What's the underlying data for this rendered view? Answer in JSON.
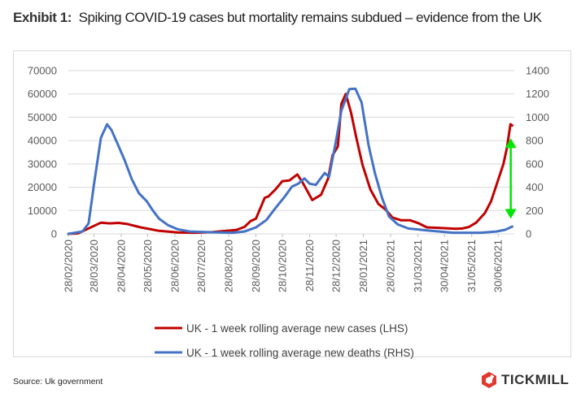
{
  "title": {
    "label": "Exhibit 1:",
    "text": "Spiking COVID-19 cases but mortality remains subdued – evidence from the UK"
  },
  "source": "Source: Uk government",
  "logo": {
    "text": "TICKMILL",
    "color": "#e03a2e"
  },
  "chart_data": {
    "type": "line",
    "title": "Spiking COVID-19 cases but mortality remains subdued – evidence from the UK",
    "xlabel": "",
    "ylabel": "",
    "grid": true,
    "legend_position": "bottom",
    "x_tick_labels": [
      "28/02/2020",
      "28/03/2020",
      "28/04/2020",
      "28/05/2020",
      "28/06/2020",
      "28/07/2020",
      "28/08/2020",
      "28/09/2020",
      "28/10/2020",
      "28/11/2020",
      "28/12/2020",
      "28/01/2021",
      "28/02/2021",
      "31/03/2021",
      "30/04/2021",
      "31/05/2021",
      "30/06/2021"
    ],
    "x_range": [
      "2020-02-28",
      "2021-07-22"
    ],
    "y_left": {
      "range": [
        0,
        70000
      ],
      "ticks": [
        "0",
        "10000",
        "20000",
        "30000",
        "40000",
        "50000",
        "60000",
        "70000"
      ]
    },
    "y_right": {
      "range": [
        0,
        1400
      ],
      "ticks": [
        "0",
        "200",
        "400",
        "600",
        "800",
        "1000",
        "1200",
        "1400"
      ]
    },
    "series": [
      {
        "name": "UK - 1 week rolling average new cases (LHS)",
        "axis": "left",
        "color": "#c00000",
        "points": [
          [
            "2020-02-28",
            0
          ],
          [
            "2020-03-10",
            200
          ],
          [
            "2020-03-20",
            2000
          ],
          [
            "2020-04-05",
            4800
          ],
          [
            "2020-04-15",
            4500
          ],
          [
            "2020-04-25",
            4700
          ],
          [
            "2020-05-05",
            4200
          ],
          [
            "2020-05-20",
            2800
          ],
          [
            "2020-06-10",
            1300
          ],
          [
            "2020-07-01",
            600
          ],
          [
            "2020-07-20",
            500
          ],
          [
            "2020-08-10",
            800
          ],
          [
            "2020-09-06",
            1700
          ],
          [
            "2020-09-15",
            3000
          ],
          [
            "2020-09-22",
            5500
          ],
          [
            "2020-09-28",
            6500
          ],
          [
            "2020-10-08",
            15500
          ],
          [
            "2020-10-12",
            16000
          ],
          [
            "2020-10-20",
            19000
          ],
          [
            "2020-10-28",
            22600
          ],
          [
            "2020-11-05",
            22900
          ],
          [
            "2020-11-14",
            25500
          ],
          [
            "2020-11-20",
            22000
          ],
          [
            "2020-12-01",
            14500
          ],
          [
            "2020-12-11",
            16800
          ],
          [
            "2020-12-19",
            23800
          ],
          [
            "2020-12-24",
            33700
          ],
          [
            "2020-12-30",
            37500
          ],
          [
            "2021-01-03",
            55700
          ],
          [
            "2021-01-08",
            60000
          ],
          [
            "2021-01-14",
            52000
          ],
          [
            "2021-01-20",
            41200
          ],
          [
            "2021-01-27",
            29600
          ],
          [
            "2021-02-05",
            19000
          ],
          [
            "2021-02-14",
            12800
          ],
          [
            "2021-02-22",
            10500
          ],
          [
            "2021-03-02",
            7000
          ],
          [
            "2021-03-12",
            5800
          ],
          [
            "2021-03-22",
            5800
          ],
          [
            "2021-04-01",
            4500
          ],
          [
            "2021-04-10",
            2800
          ],
          [
            "2021-04-25",
            2500
          ],
          [
            "2021-05-13",
            2200
          ],
          [
            "2021-05-20",
            2300
          ],
          [
            "2021-05-28",
            3000
          ],
          [
            "2021-06-05",
            4800
          ],
          [
            "2021-06-15",
            9000
          ],
          [
            "2021-06-22",
            14000
          ],
          [
            "2021-06-29",
            22000
          ],
          [
            "2021-07-06",
            30000
          ],
          [
            "2021-07-10",
            37000
          ],
          [
            "2021-07-14",
            47000
          ],
          [
            "2021-07-16",
            46500
          ]
        ]
      },
      {
        "name": "UK - 1 week rolling average new deaths (RHS)",
        "axis": "right",
        "color": "#4472c4",
        "points": [
          [
            "2020-02-28",
            0
          ],
          [
            "2020-03-15",
            20
          ],
          [
            "2020-03-22",
            90
          ],
          [
            "2020-03-28",
            420
          ],
          [
            "2020-04-05",
            824
          ],
          [
            "2020-04-12",
            940
          ],
          [
            "2020-04-17",
            890
          ],
          [
            "2020-04-24",
            770
          ],
          [
            "2020-05-02",
            630
          ],
          [
            "2020-05-10",
            470
          ],
          [
            "2020-05-18",
            350
          ],
          [
            "2020-05-27",
            280
          ],
          [
            "2020-06-03",
            200
          ],
          [
            "2020-06-10",
            130
          ],
          [
            "2020-06-20",
            75
          ],
          [
            "2020-07-01",
            40
          ],
          [
            "2020-07-15",
            20
          ],
          [
            "2020-08-01",
            15
          ],
          [
            "2020-09-01",
            10
          ],
          [
            "2020-09-15",
            20
          ],
          [
            "2020-09-28",
            55
          ],
          [
            "2020-10-10",
            120
          ],
          [
            "2020-10-20",
            220
          ],
          [
            "2020-10-30",
            313
          ],
          [
            "2020-11-08",
            406
          ],
          [
            "2020-11-15",
            430
          ],
          [
            "2020-11-22",
            476
          ],
          [
            "2020-11-28",
            430
          ],
          [
            "2020-12-05",
            420
          ],
          [
            "2020-12-15",
            522
          ],
          [
            "2020-12-20",
            490
          ],
          [
            "2020-12-28",
            801
          ],
          [
            "2021-01-03",
            1056
          ],
          [
            "2021-01-12",
            1242
          ],
          [
            "2021-01-19",
            1245
          ],
          [
            "2021-01-26",
            1126
          ],
          [
            "2021-02-03",
            754
          ],
          [
            "2021-02-10",
            522
          ],
          [
            "2021-02-18",
            313
          ],
          [
            "2021-02-26",
            150
          ],
          [
            "2021-03-08",
            81
          ],
          [
            "2021-03-20",
            46
          ],
          [
            "2021-04-10",
            30
          ],
          [
            "2021-05-10",
            10
          ],
          [
            "2021-06-10",
            10
          ],
          [
            "2021-06-28",
            20
          ],
          [
            "2021-07-08",
            35
          ],
          [
            "2021-07-16",
            63
          ]
        ]
      }
    ],
    "annotations": [
      {
        "type": "double-headed-arrow",
        "color": "#00e600",
        "date": "2021-07-18",
        "from_lhs": 6500,
        "to_lhs": 41000
      }
    ]
  }
}
